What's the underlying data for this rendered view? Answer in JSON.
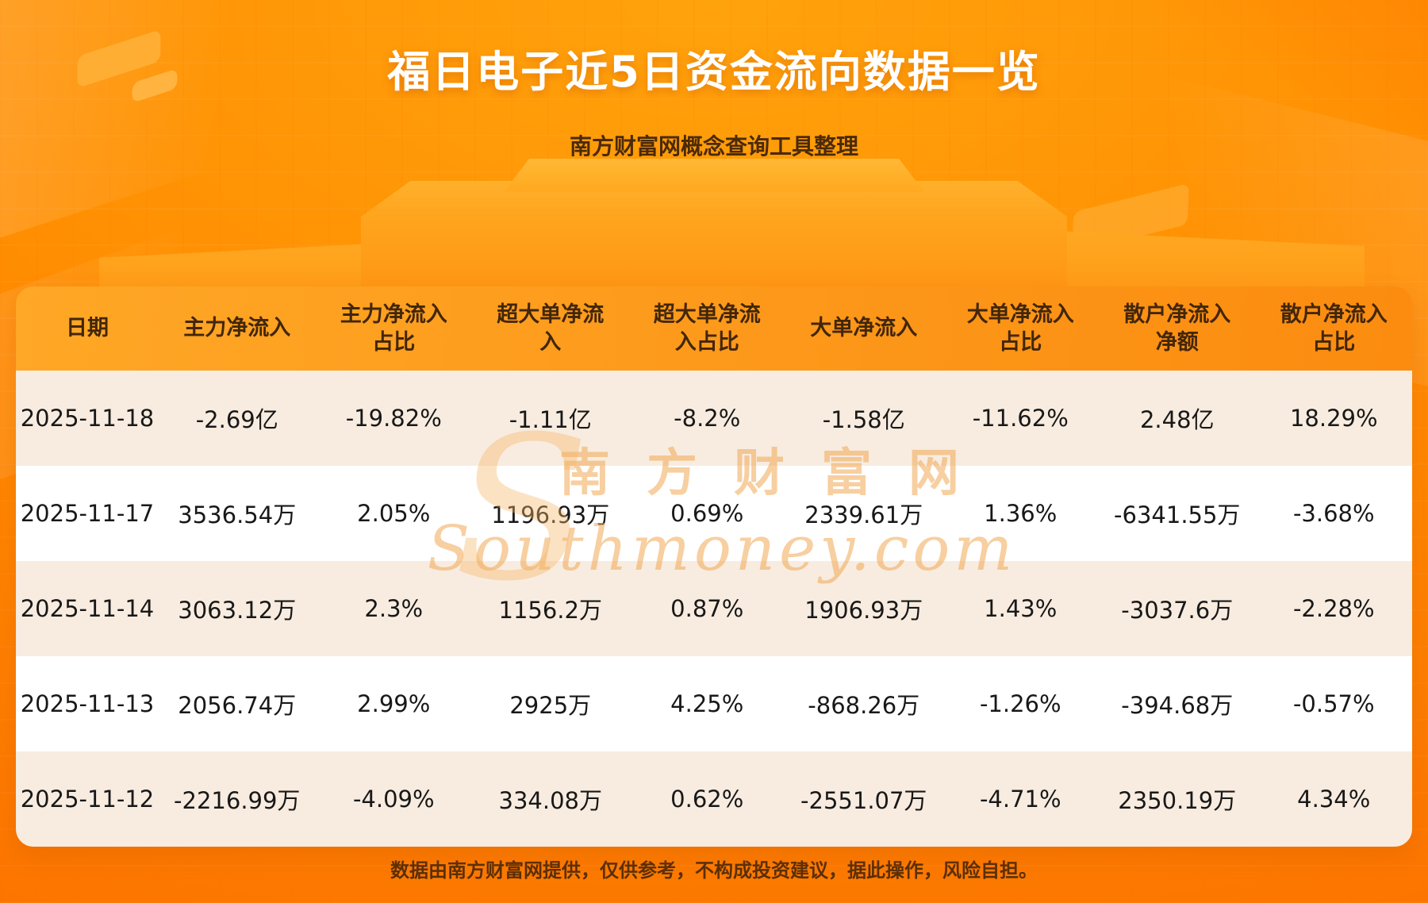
{
  "page": {
    "title": "福日电子近5日资金流向数据一览",
    "subtitle": "南方财富网概念查询工具整理",
    "footer": "数据由南方财富网提供，仅供参考，不构成投资建议，据此操作，风险自担。",
    "watermark_s": "S",
    "watermark_cn": "南方财富网",
    "watermark_en": "Southmoney.com"
  },
  "colors": {
    "background_top": "#ffa30c",
    "background_bottom": "#fa6c00",
    "header_band": "#fb8c10",
    "header_text": "#42260a",
    "row_odd": "#f8ece0",
    "row_even": "#ffffff",
    "cell_text": "#181818",
    "title_text": "#ffffff",
    "disclaimer_text": "#5a2f07"
  },
  "chart_data": {
    "type": "table",
    "title": "福日电子近5日资金流向数据一览",
    "subtitle": "南方财富网概念查询工具整理",
    "columns": [
      "日期",
      "主力净流入",
      "主力净流入占比",
      "超大单净流入",
      "超大单净流入占比",
      "大单净流入",
      "大单净流入占比",
      "散户净流入净额",
      "散户净流入占比"
    ],
    "columns_display": [
      "日期",
      "主力净流入",
      "主力净流入\n占比",
      "超大单净流\n入",
      "超大单净流\n入占比",
      "大单净流入",
      "大单净流入\n占比",
      "散户净流入\n净额",
      "散户净流入\n占比"
    ],
    "rows": [
      [
        "2025-11-18",
        "-2.69亿",
        "-19.82%",
        "-1.11亿",
        "-8.2%",
        "-1.58亿",
        "-11.62%",
        "2.48亿",
        "18.29%"
      ],
      [
        "2025-11-17",
        "3536.54万",
        "2.05%",
        "1196.93万",
        "0.69%",
        "2339.61万",
        "1.36%",
        "-6341.55万",
        "-3.68%"
      ],
      [
        "2025-11-14",
        "3063.12万",
        "2.3%",
        "1156.2万",
        "0.87%",
        "1906.93万",
        "1.43%",
        "-3037.6万",
        "-2.28%"
      ],
      [
        "2025-11-13",
        "2056.74万",
        "2.99%",
        "2925万",
        "4.25%",
        "-868.26万",
        "-1.26%",
        "-394.68万",
        "-0.57%"
      ],
      [
        "2025-11-12",
        "-2216.99万",
        "-4.09%",
        "334.08万",
        "0.62%",
        "-2551.07万",
        "-4.71%",
        "2350.19万",
        "4.34%"
      ]
    ]
  }
}
